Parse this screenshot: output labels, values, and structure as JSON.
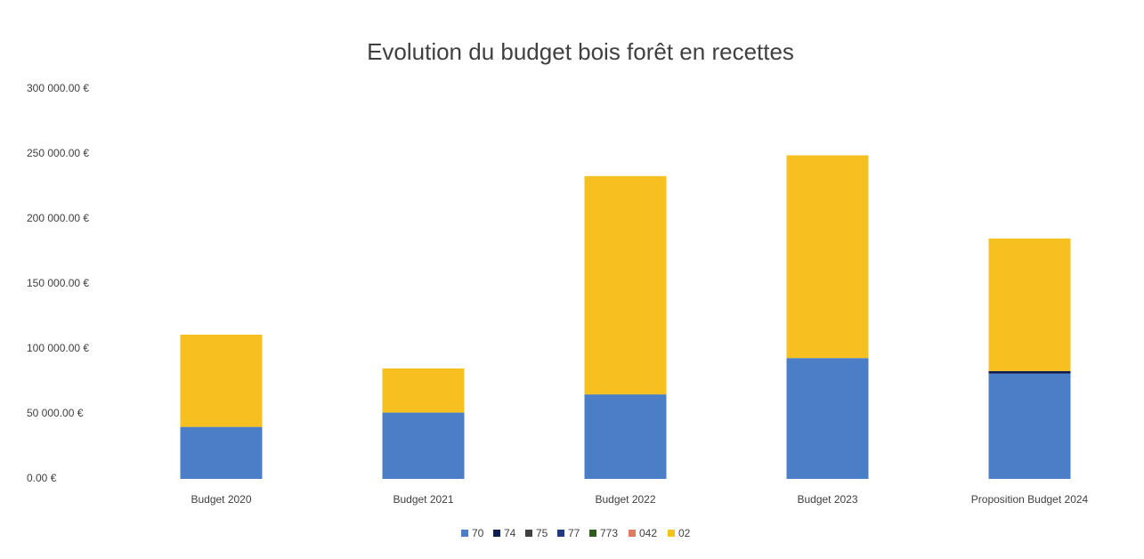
{
  "chart_data": {
    "type": "stacked_bar",
    "title": "Evolution du budget bois forêt en recettes",
    "categories": [
      "Budget 2020",
      "Budget 2021",
      "Budget 2022",
      "Budget 2023",
      "Proposition Budget 2024"
    ],
    "series": [
      {
        "name": "70",
        "color": "#4a7fc8",
        "values": [
          40000,
          51000,
          65000,
          93000,
          81000
        ]
      },
      {
        "name": "74",
        "color": "#0d1f4f",
        "values": [
          0,
          0,
          0,
          0,
          2000
        ]
      },
      {
        "name": "75",
        "color": "#404040",
        "values": [
          0,
          0,
          0,
          0,
          0
        ]
      },
      {
        "name": "77",
        "color": "#1f3a80",
        "values": [
          0,
          0,
          0,
          0,
          0
        ]
      },
      {
        "name": "773",
        "color": "#2e5a1c",
        "values": [
          0,
          0,
          0,
          0,
          0
        ]
      },
      {
        "name": "042",
        "color": "#e07b62",
        "values": [
          0,
          0,
          0,
          0,
          0
        ]
      },
      {
        "name": "02",
        "color": "#f5c020",
        "values": [
          71000,
          34000,
          168000,
          156000,
          102000
        ]
      }
    ],
    "ylim": [
      0,
      300000
    ],
    "yticks": [
      {
        "value": 0,
        "label": "0.00 €"
      },
      {
        "value": 50000,
        "label": "50 000.00 €"
      },
      {
        "value": 100000,
        "label": "100 000.00 €"
      },
      {
        "value": 150000,
        "label": "150 000.00 €"
      },
      {
        "value": 200000,
        "label": "200 000.00 €"
      },
      {
        "value": 250000,
        "label": "250 000.00 €"
      },
      {
        "value": 300000,
        "label": "300 000.00 €"
      }
    ],
    "grid": false,
    "legend": "bottom"
  }
}
